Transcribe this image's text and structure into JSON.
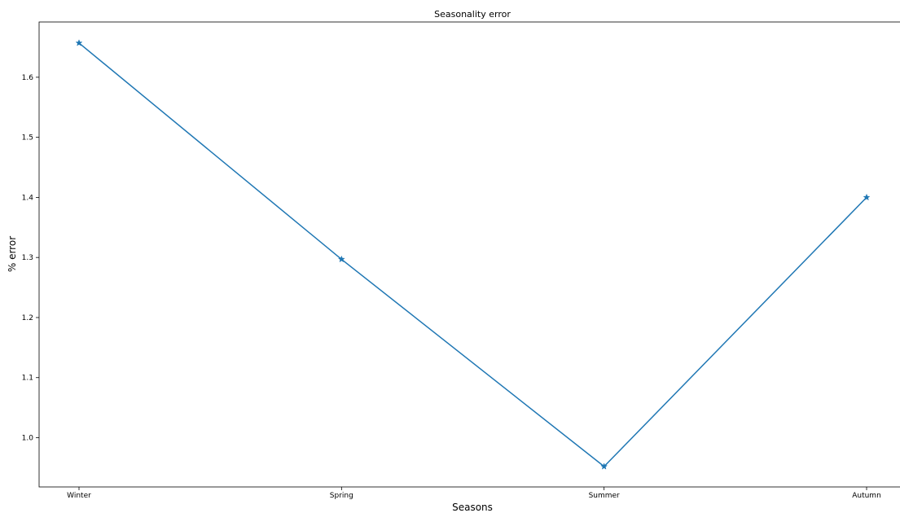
{
  "chart_data": {
    "type": "line",
    "title": "Seasonality error",
    "xlabel": "Seasons",
    "ylabel": "% error",
    "categories": [
      "Winter",
      "Spring",
      "Summer",
      "Autumn"
    ],
    "values": [
      1.657,
      1.297,
      0.952,
      1.4
    ],
    "marker": "star",
    "color": "#1f77b4",
    "ylim": [
      0.918,
      1.692
    ],
    "yticks": [
      1.0,
      1.1,
      1.2,
      1.3,
      1.4,
      1.5,
      1.6
    ],
    "ytick_labels": [
      "1.0",
      "1.1",
      "1.2",
      "1.3",
      "1.4",
      "1.5",
      "1.6"
    ],
    "grid": false,
    "legend": "none"
  }
}
